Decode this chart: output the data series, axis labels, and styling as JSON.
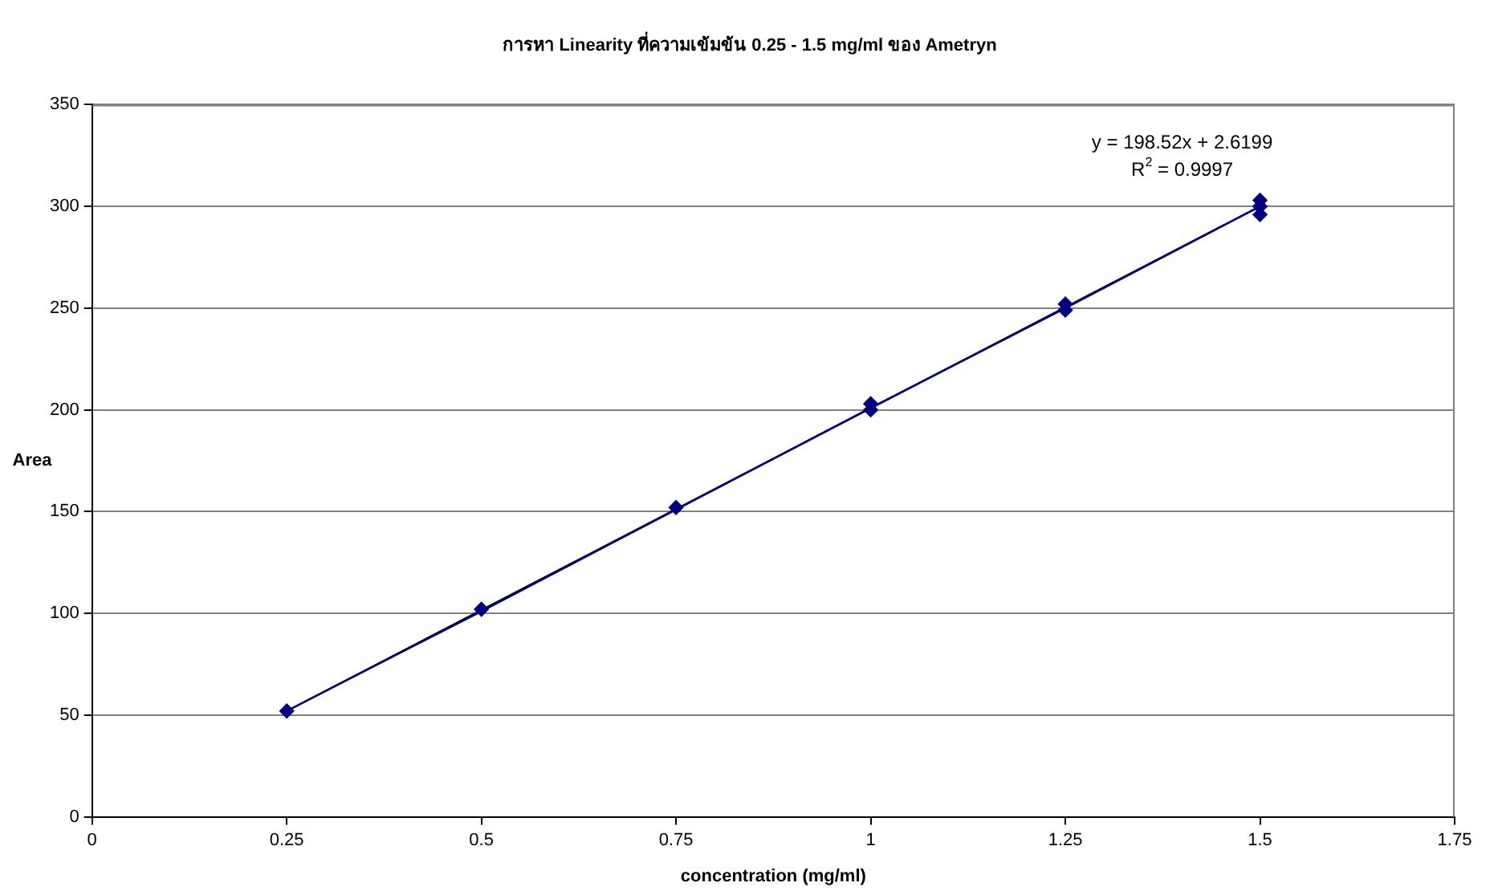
{
  "chart_data": {
    "type": "scatter",
    "title": "การหา Linearity ที่ความเข้มข้น 0.25 - 1.5 mg/ml ของ Ametryn",
    "xlabel": "concentration (mg/ml)",
    "ylabel": "Area",
    "xlim": [
      0,
      1.75
    ],
    "xticks": [
      0,
      0.25,
      0.5,
      0.75,
      1,
      1.25,
      1.5,
      1.75
    ],
    "ylim": [
      0,
      350
    ],
    "yticks": [
      0,
      50,
      100,
      150,
      200,
      250,
      300,
      350
    ],
    "grid": "y",
    "legend": false,
    "annotations": [
      "y = 198.52x + 2.6199",
      "R$^{2}$ = 0.9997"
    ],
    "series": [
      {
        "marker": "diamond",
        "color": "#000080",
        "x": [
          0.25,
          0.5,
          0.75,
          1,
          1,
          1.25,
          1.25,
          1.5,
          1.5,
          1.5
        ],
        "values": [
          52,
          102,
          152,
          200,
          203,
          249,
          252,
          296,
          300,
          303
        ]
      },
      {
        "type": "line",
        "marker": "none",
        "color": "#000080",
        "x": [
          0.25,
          0.5,
          0.75,
          1,
          1.25,
          1.5
        ],
        "values": [
          52,
          101,
          151,
          201,
          250,
          300
        ]
      },
      {
        "type": "line",
        "marker": "none",
        "color": "#000000",
        "x": [
          0.25,
          1.5
        ],
        "values": [
          52,
          300
        ]
      }
    ]
  }
}
